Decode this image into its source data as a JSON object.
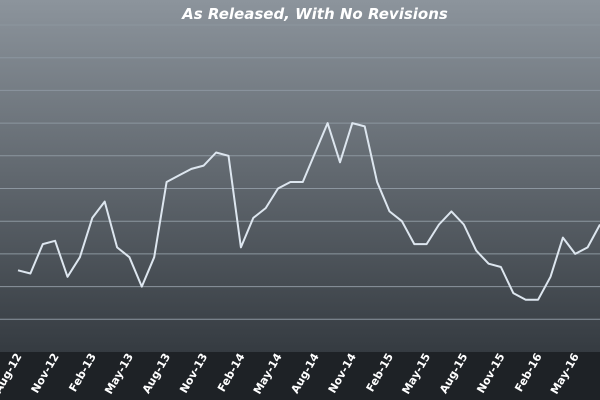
{
  "chart_data": {
    "type": "line",
    "title": "",
    "subtitle": "As Released, With No Revisions",
    "xlabel": "",
    "ylabel": "",
    "grid": true,
    "colors": {
      "line": "#dde6ef",
      "grid": "#8c969f",
      "bg_top": "#8c949c",
      "bg_bottom": "#353b41"
    },
    "ylim": [
      0,
      10
    ],
    "x_tick_labels": [
      "Aug-12",
      "Nov-12",
      "Feb-13",
      "May-13",
      "Aug-13",
      "Nov-13",
      "Feb-14",
      "May-14",
      "Aug-14",
      "Nov-14",
      "Feb-15",
      "May-15",
      "Aug-15",
      "Nov-15",
      "Feb-16",
      "May-16"
    ],
    "x": [
      "Aug-12",
      "Sep-12",
      "Oct-12",
      "Nov-12",
      "Dec-12",
      "Jan-13",
      "Feb-13",
      "Mar-13",
      "Apr-13",
      "May-13",
      "Jun-13",
      "Jul-13",
      "Aug-13",
      "Sep-13",
      "Oct-13",
      "Nov-13",
      "Dec-13",
      "Jan-14",
      "Feb-14",
      "Mar-14",
      "Apr-14",
      "May-14",
      "Jun-14",
      "Jul-14",
      "Aug-14",
      "Sep-14",
      "Oct-14",
      "Nov-14",
      "Dec-14",
      "Jan-15",
      "Feb-15",
      "Mar-15",
      "Apr-15",
      "May-15",
      "Jun-15",
      "Jul-15",
      "Aug-15",
      "Sep-15",
      "Oct-15",
      "Nov-15",
      "Dec-15",
      "Jan-16",
      "Feb-16",
      "Mar-16",
      "Apr-16",
      "May-16",
      "Jun-16",
      "Jul-16"
    ],
    "series": [
      {
        "values": [
          2.5,
          2.4,
          3.3,
          3.4,
          2.3,
          2.9,
          4.1,
          4.6,
          3.2,
          2.9,
          2.0,
          2.9,
          5.2,
          5.4,
          5.6,
          5.7,
          6.1,
          6.0,
          3.2,
          4.1,
          4.4,
          5.0,
          5.2,
          5.2,
          6.1,
          7.0,
          5.8,
          7.0,
          6.9,
          5.2,
          4.3,
          4.0,
          3.3,
          3.3,
          3.9,
          4.3,
          3.9,
          3.1,
          2.7,
          2.6,
          1.8,
          1.6,
          1.6,
          2.3,
          3.5,
          3.0,
          3.2,
          3.9
        ]
      }
    ]
  }
}
